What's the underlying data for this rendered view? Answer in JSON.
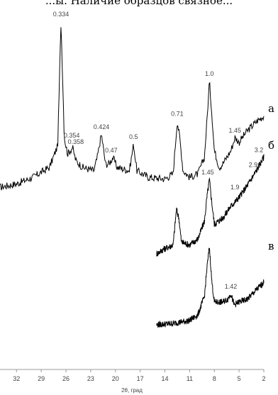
{
  "header_text": "...ы. Наличие образцов связное...",
  "chart_data": {
    "type": "line",
    "title": "",
    "xlabel": "2θ, град",
    "ylabel": "",
    "x_direction": "reversed",
    "xlim": [
      34,
      2
    ],
    "x_ticks": [
      32,
      29,
      26,
      23,
      20,
      17,
      14,
      11,
      8,
      5,
      2
    ],
    "grid": false,
    "legend": "none",
    "series": [
      {
        "label": "а",
        "x_range": [
          34,
          2
        ],
        "points": [
          [
            34,
            0.0
          ],
          [
            32,
            0.02
          ],
          [
            30,
            0.06
          ],
          [
            28,
            0.12
          ],
          [
            27,
            0.25
          ],
          [
            26.6,
            1.0
          ],
          [
            26.2,
            0.3
          ],
          [
            25.8,
            0.2
          ],
          [
            25.2,
            0.24
          ],
          [
            24.8,
            0.16
          ],
          [
            24,
            0.12
          ],
          [
            22.6,
            0.1
          ],
          [
            22.2,
            0.18
          ],
          [
            21.7,
            0.32
          ],
          [
            21.2,
            0.14
          ],
          [
            20.8,
            0.14
          ],
          [
            20.3,
            0.18
          ],
          [
            19.8,
            0.12
          ],
          [
            18.3,
            0.1
          ],
          [
            17.8,
            0.26
          ],
          [
            17.4,
            0.1
          ],
          [
            16,
            0.06
          ],
          [
            14,
            0.05
          ],
          [
            13,
            0.08
          ],
          [
            12.5,
            0.4
          ],
          [
            12.2,
            0.3
          ],
          [
            11.8,
            0.1
          ],
          [
            11,
            0.06
          ],
          [
            10,
            0.08
          ],
          [
            9.2,
            0.18
          ],
          [
            8.9,
            0.4
          ],
          [
            8.6,
            0.64
          ],
          [
            8.3,
            0.44
          ],
          [
            8,
            0.22
          ],
          [
            7.4,
            0.12
          ],
          [
            7,
            0.14
          ],
          [
            6,
            0.22
          ],
          [
            5.5,
            0.3
          ],
          [
            5,
            0.27
          ],
          [
            4.6,
            0.3
          ],
          [
            4,
            0.34
          ],
          [
            3.4,
            0.37
          ],
          [
            2.8,
            0.4
          ],
          [
            2,
            0.43
          ]
        ],
        "peak_labels": [
          {
            "x": 26.6,
            "y": 1.0,
            "text": "0.334"
          },
          {
            "x": 25.3,
            "y": 0.27,
            "text": "0.354"
          },
          {
            "x": 24.8,
            "y": 0.23,
            "text": "0.358"
          },
          {
            "x": 21.7,
            "y": 0.32,
            "text": "0.424"
          },
          {
            "x": 20.5,
            "y": 0.18,
            "text": "0.47"
          },
          {
            "x": 17.8,
            "y": 0.26,
            "text": "0.5"
          },
          {
            "x": 12.5,
            "y": 0.4,
            "text": "0.71"
          },
          {
            "x": 8.6,
            "y": 0.64,
            "text": "1.0"
          },
          {
            "x": 5.5,
            "y": 0.3,
            "text": "1.45"
          }
        ]
      },
      {
        "label": "б",
        "x_range": [
          15,
          2
        ],
        "points": [
          [
            15,
            0.0
          ],
          [
            14.2,
            0.03
          ],
          [
            13,
            0.06
          ],
          [
            12.6,
            0.3
          ],
          [
            12.3,
            0.24
          ],
          [
            12,
            0.08
          ],
          [
            11,
            0.06
          ],
          [
            10,
            0.1
          ],
          [
            9.2,
            0.22
          ],
          [
            8.9,
            0.38
          ],
          [
            8.6,
            0.5
          ],
          [
            8.3,
            0.34
          ],
          [
            8,
            0.2
          ],
          [
            7,
            0.24
          ],
          [
            6,
            0.32
          ],
          [
            5,
            0.38
          ],
          [
            4,
            0.46
          ],
          [
            3,
            0.55
          ],
          [
            2,
            0.65
          ]
        ],
        "peak_labels": [
          {
            "x": 8.8,
            "y": 0.5,
            "text": "1.45"
          },
          {
            "x": 5.5,
            "y": 0.4,
            "text": "1.9"
          },
          {
            "x": 3.3,
            "y": 0.55,
            "text": "2.9"
          },
          {
            "x": 2.6,
            "y": 0.65,
            "text": "3.2"
          }
        ]
      },
      {
        "label": "в",
        "x_range": [
          15,
          2
        ],
        "points": [
          [
            15,
            0.0
          ],
          [
            13,
            0.01
          ],
          [
            11,
            0.03
          ],
          [
            10,
            0.07
          ],
          [
            9.2,
            0.2
          ],
          [
            8.9,
            0.4
          ],
          [
            8.6,
            0.55
          ],
          [
            8.3,
            0.3
          ],
          [
            8,
            0.16
          ],
          [
            7,
            0.16
          ],
          [
            6.4,
            0.18
          ],
          [
            6,
            0.22
          ],
          [
            5.6,
            0.14
          ],
          [
            5,
            0.16
          ],
          [
            4,
            0.18
          ],
          [
            3,
            0.24
          ],
          [
            2,
            0.3
          ]
        ],
        "peak_labels": [
          {
            "x": 6,
            "y": 0.22,
            "text": "1.42"
          }
        ]
      }
    ]
  }
}
